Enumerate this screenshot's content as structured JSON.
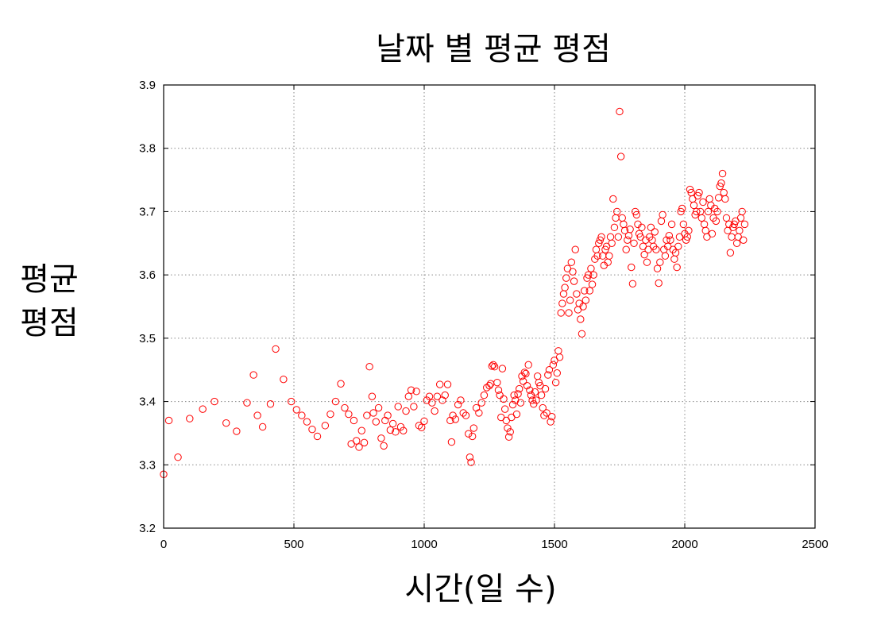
{
  "chart_data": {
    "type": "scatter",
    "title": "날짜 별 평균 평점",
    "xlabel": "시간(일 수)",
    "ylabel": [
      "평균",
      "평점"
    ],
    "xlim": [
      0,
      2500
    ],
    "ylim": [
      3.2,
      3.9
    ],
    "xticks": [
      "0",
      "500",
      "1000",
      "1500",
      "2000",
      "2500"
    ],
    "yticks": [
      "3.2",
      "3.3",
      "3.4",
      "3.5",
      "3.6",
      "3.7",
      "3.8",
      "3.9"
    ],
    "grid": true,
    "marker": "open-circle",
    "color": "#ff0000",
    "series": [
      {
        "points": [
          [
            0,
            3.285
          ],
          [
            20,
            3.37
          ],
          [
            55,
            3.312
          ],
          [
            100,
            3.373
          ],
          [
            150,
            3.388
          ],
          [
            195,
            3.4
          ],
          [
            240,
            3.366
          ],
          [
            280,
            3.353
          ],
          [
            320,
            3.398
          ],
          [
            345,
            3.442
          ],
          [
            360,
            3.378
          ],
          [
            380,
            3.36
          ],
          [
            410,
            3.396
          ],
          [
            430,
            3.483
          ],
          [
            460,
            3.435
          ],
          [
            490,
            3.4
          ],
          [
            510,
            3.387
          ],
          [
            530,
            3.378
          ],
          [
            550,
            3.368
          ],
          [
            570,
            3.356
          ],
          [
            590,
            3.345
          ],
          [
            620,
            3.362
          ],
          [
            640,
            3.38
          ],
          [
            660,
            3.4
          ],
          [
            680,
            3.428
          ],
          [
            695,
            3.39
          ],
          [
            710,
            3.38
          ],
          [
            720,
            3.333
          ],
          [
            730,
            3.37
          ],
          [
            740,
            3.338
          ],
          [
            750,
            3.328
          ],
          [
            760,
            3.354
          ],
          [
            770,
            3.335
          ],
          [
            780,
            3.378
          ],
          [
            790,
            3.455
          ],
          [
            800,
            3.408
          ],
          [
            805,
            3.382
          ],
          [
            815,
            3.368
          ],
          [
            825,
            3.39
          ],
          [
            835,
            3.342
          ],
          [
            845,
            3.33
          ],
          [
            850,
            3.37
          ],
          [
            860,
            3.378
          ],
          [
            870,
            3.355
          ],
          [
            880,
            3.365
          ],
          [
            890,
            3.352
          ],
          [
            900,
            3.392
          ],
          [
            910,
            3.36
          ],
          [
            920,
            3.354
          ],
          [
            930,
            3.385
          ],
          [
            940,
            3.408
          ],
          [
            950,
            3.418
          ],
          [
            960,
            3.392
          ],
          [
            970,
            3.416
          ],
          [
            980,
            3.362
          ],
          [
            990,
            3.359
          ],
          [
            1000,
            3.369
          ],
          [
            1010,
            3.402
          ],
          [
            1020,
            3.408
          ],
          [
            1030,
            3.398
          ],
          [
            1040,
            3.385
          ],
          [
            1050,
            3.408
          ],
          [
            1060,
            3.427
          ],
          [
            1070,
            3.402
          ],
          [
            1080,
            3.41
          ],
          [
            1090,
            3.427
          ],
          [
            1100,
            3.37
          ],
          [
            1105,
            3.336
          ],
          [
            1110,
            3.378
          ],
          [
            1120,
            3.372
          ],
          [
            1130,
            3.395
          ],
          [
            1140,
            3.402
          ],
          [
            1150,
            3.382
          ],
          [
            1160,
            3.378
          ],
          [
            1170,
            3.349
          ],
          [
            1175,
            3.312
          ],
          [
            1180,
            3.304
          ],
          [
            1185,
            3.345
          ],
          [
            1190,
            3.358
          ],
          [
            1200,
            3.39
          ],
          [
            1210,
            3.382
          ],
          [
            1220,
            3.398
          ],
          [
            1230,
            3.41
          ],
          [
            1240,
            3.422
          ],
          [
            1250,
            3.425
          ],
          [
            1255,
            3.428
          ],
          [
            1260,
            3.456
          ],
          [
            1265,
            3.458
          ],
          [
            1270,
            3.455
          ],
          [
            1280,
            3.43
          ],
          [
            1285,
            3.418
          ],
          [
            1290,
            3.41
          ],
          [
            1295,
            3.375
          ],
          [
            1300,
            3.452
          ],
          [
            1305,
            3.404
          ],
          [
            1310,
            3.388
          ],
          [
            1315,
            3.37
          ],
          [
            1320,
            3.358
          ],
          [
            1325,
            3.344
          ],
          [
            1330,
            3.352
          ],
          [
            1335,
            3.375
          ],
          [
            1340,
            3.395
          ],
          [
            1345,
            3.41
          ],
          [
            1350,
            3.402
          ],
          [
            1355,
            3.38
          ],
          [
            1360,
            3.412
          ],
          [
            1365,
            3.42
          ],
          [
            1370,
            3.398
          ],
          [
            1375,
            3.44
          ],
          [
            1380,
            3.432
          ],
          [
            1385,
            3.446
          ],
          [
            1390,
            3.444
          ],
          [
            1395,
            3.425
          ],
          [
            1400,
            3.458
          ],
          [
            1405,
            3.418
          ],
          [
            1410,
            3.41
          ],
          [
            1415,
            3.402
          ],
          [
            1420,
            3.396
          ],
          [
            1425,
            3.415
          ],
          [
            1430,
            3.402
          ],
          [
            1435,
            3.44
          ],
          [
            1440,
            3.43
          ],
          [
            1445,
            3.425
          ],
          [
            1450,
            3.41
          ],
          [
            1455,
            3.39
          ],
          [
            1460,
            3.378
          ],
          [
            1465,
            3.42
          ],
          [
            1470,
            3.382
          ],
          [
            1475,
            3.442
          ],
          [
            1480,
            3.45
          ],
          [
            1485,
            3.368
          ],
          [
            1490,
            3.376
          ],
          [
            1495,
            3.458
          ],
          [
            1500,
            3.465
          ],
          [
            1505,
            3.43
          ],
          [
            1510,
            3.445
          ],
          [
            1515,
            3.48
          ],
          [
            1520,
            3.47
          ],
          [
            1525,
            3.54
          ],
          [
            1530,
            3.555
          ],
          [
            1535,
            3.57
          ],
          [
            1540,
            3.58
          ],
          [
            1545,
            3.595
          ],
          [
            1550,
            3.61
          ],
          [
            1555,
            3.54
          ],
          [
            1560,
            3.56
          ],
          [
            1565,
            3.62
          ],
          [
            1570,
            3.605
          ],
          [
            1575,
            3.59
          ],
          [
            1580,
            3.64
          ],
          [
            1585,
            3.57
          ],
          [
            1590,
            3.545
          ],
          [
            1595,
            3.555
          ],
          [
            1600,
            3.53
          ],
          [
            1605,
            3.507
          ],
          [
            1610,
            3.55
          ],
          [
            1615,
            3.575
          ],
          [
            1620,
            3.56
          ],
          [
            1625,
            3.595
          ],
          [
            1630,
            3.6
          ],
          [
            1635,
            3.575
          ],
          [
            1640,
            3.61
          ],
          [
            1645,
            3.585
          ],
          [
            1650,
            3.6
          ],
          [
            1655,
            3.625
          ],
          [
            1660,
            3.64
          ],
          [
            1665,
            3.63
          ],
          [
            1670,
            3.65
          ],
          [
            1675,
            3.655
          ],
          [
            1680,
            3.66
          ],
          [
            1685,
            3.63
          ],
          [
            1690,
            3.615
          ],
          [
            1695,
            3.64
          ],
          [
            1700,
            3.645
          ],
          [
            1705,
            3.62
          ],
          [
            1710,
            3.63
          ],
          [
            1715,
            3.66
          ],
          [
            1720,
            3.65
          ],
          [
            1725,
            3.72
          ],
          [
            1730,
            3.675
          ],
          [
            1735,
            3.69
          ],
          [
            1740,
            3.7
          ],
          [
            1745,
            3.66
          ],
          [
            1750,
            3.858
          ],
          [
            1755,
            3.787
          ],
          [
            1760,
            3.69
          ],
          [
            1765,
            3.68
          ],
          [
            1770,
            3.67
          ],
          [
            1775,
            3.64
          ],
          [
            1780,
            3.655
          ],
          [
            1785,
            3.662
          ],
          [
            1790,
            3.672
          ],
          [
            1795,
            3.612
          ],
          [
            1800,
            3.586
          ],
          [
            1805,
            3.65
          ],
          [
            1810,
            3.7
          ],
          [
            1815,
            3.695
          ],
          [
            1820,
            3.68
          ],
          [
            1825,
            3.665
          ],
          [
            1830,
            3.66
          ],
          [
            1835,
            3.675
          ],
          [
            1840,
            3.645
          ],
          [
            1845,
            3.632
          ],
          [
            1850,
            3.655
          ],
          [
            1855,
            3.62
          ],
          [
            1860,
            3.64
          ],
          [
            1865,
            3.66
          ],
          [
            1870,
            3.675
          ],
          [
            1875,
            3.655
          ],
          [
            1880,
            3.645
          ],
          [
            1885,
            3.668
          ],
          [
            1890,
            3.64
          ],
          [
            1895,
            3.61
          ],
          [
            1900,
            3.587
          ],
          [
            1905,
            3.62
          ],
          [
            1910,
            3.685
          ],
          [
            1915,
            3.695
          ],
          [
            1920,
            3.64
          ],
          [
            1925,
            3.63
          ],
          [
            1930,
            3.655
          ],
          [
            1935,
            3.645
          ],
          [
            1940,
            3.662
          ],
          [
            1945,
            3.655
          ],
          [
            1950,
            3.68
          ],
          [
            1955,
            3.64
          ],
          [
            1960,
            3.625
          ],
          [
            1965,
            3.635
          ],
          [
            1970,
            3.612
          ],
          [
            1975,
            3.645
          ],
          [
            1980,
            3.66
          ],
          [
            1985,
            3.7
          ],
          [
            1990,
            3.705
          ],
          [
            1995,
            3.68
          ],
          [
            2000,
            3.665
          ],
          [
            2005,
            3.655
          ],
          [
            2010,
            3.66
          ],
          [
            2015,
            3.67
          ],
          [
            2020,
            3.735
          ],
          [
            2025,
            3.73
          ],
          [
            2030,
            3.72
          ],
          [
            2035,
            3.71
          ],
          [
            2040,
            3.695
          ],
          [
            2045,
            3.7
          ],
          [
            2050,
            3.725
          ],
          [
            2055,
            3.73
          ],
          [
            2060,
            3.7
          ],
          [
            2065,
            3.69
          ],
          [
            2070,
            3.715
          ],
          [
            2075,
            3.68
          ],
          [
            2080,
            3.67
          ],
          [
            2085,
            3.66
          ],
          [
            2090,
            3.7
          ],
          [
            2095,
            3.72
          ],
          [
            2100,
            3.71
          ],
          [
            2105,
            3.665
          ],
          [
            2110,
            3.69
          ],
          [
            2115,
            3.705
          ],
          [
            2120,
            3.685
          ],
          [
            2125,
            3.7
          ],
          [
            2130,
            3.722
          ],
          [
            2135,
            3.74
          ],
          [
            2140,
            3.745
          ],
          [
            2145,
            3.76
          ],
          [
            2150,
            3.73
          ],
          [
            2155,
            3.72
          ],
          [
            2160,
            3.69
          ],
          [
            2165,
            3.67
          ],
          [
            2170,
            3.68
          ],
          [
            2175,
            3.635
          ],
          [
            2180,
            3.66
          ],
          [
            2185,
            3.675
          ],
          [
            2190,
            3.68
          ],
          [
            2195,
            3.685
          ],
          [
            2200,
            3.65
          ],
          [
            2205,
            3.66
          ],
          [
            2210,
            3.67
          ],
          [
            2215,
            3.69
          ],
          [
            2220,
            3.7
          ],
          [
            2225,
            3.655
          ],
          [
            2230,
            3.68
          ]
        ]
      }
    ]
  }
}
